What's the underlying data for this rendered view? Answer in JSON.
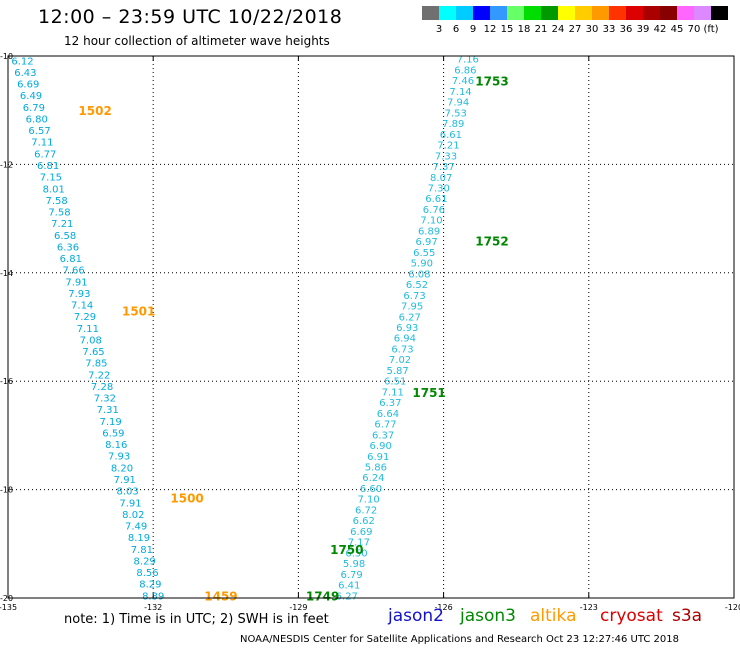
{
  "title": "12:00 – 23:59 UTC 10/22/2018",
  "subtitle": "12 hour collection of altimeter wave heights",
  "note": "note:  1) Time is in UTC;  2) SWH is in feet",
  "credit": "NOAA/NESDIS Center for Satellite Applications and Research     Oct 23 12:27:46 UTC 2018",
  "satellites": [
    {
      "name": "jason2",
      "color": "#1212cc"
    },
    {
      "name": "jason3",
      "color": "#008800"
    },
    {
      "name": "altika",
      "color": "#ff9900"
    },
    {
      "name": "cryosat",
      "color": "#dd0000"
    },
    {
      "name": "s3a",
      "color": "#aa0000"
    }
  ],
  "legend": {
    "colors": [
      "#707070",
      "#00ffff",
      "#00ccff",
      "#0000ff",
      "#3399ff",
      "#66ff66",
      "#00dd00",
      "#009900",
      "#ffff00",
      "#ffcc00",
      "#ff9900",
      "#ff3300",
      "#dd0000",
      "#aa0000",
      "#880000",
      "#ff66ff",
      "#dd88ff",
      "#000000"
    ],
    "labels": [
      "3",
      "6",
      "9",
      "12",
      "15",
      "18",
      "21",
      "24",
      "27",
      "30",
      "33",
      "36",
      "39",
      "42",
      "45",
      "70",
      "(ft)"
    ]
  },
  "chart_data": {
    "type": "scatter",
    "x_ticks": [
      -135,
      -132,
      -129,
      -126,
      -123,
      -120
    ],
    "x_tick_labels": [
      "-135",
      "-132",
      "-129",
      "-126",
      "-123",
      "-120"
    ],
    "y_ticks": [
      -10,
      -12,
      -14,
      -16,
      -18,
      -20
    ],
    "y_tick_labels": [
      "-10",
      "-12",
      "-14",
      "-16",
      "-18",
      "-20"
    ],
    "xlim": [
      -135,
      -120
    ],
    "ylim": [
      -20,
      -10
    ],
    "grid": true,
    "tracks": [
      {
        "satellite": "altika",
        "color": "#00aadd",
        "time_color": "#ff9900",
        "start": [
          -134.7,
          -10.08
        ],
        "end": [
          -132.0,
          -19.95
        ],
        "values": [
          "6.12",
          "6.43",
          "6.69",
          "6.49",
          "6.79",
          "6.80",
          "6.57",
          "7.11",
          "6.77",
          "6.81",
          "7.15",
          "8.01",
          "7.58",
          "7.58",
          "7.21",
          "6.58",
          "6.36",
          "6.81",
          "7.66",
          "7.91",
          "7.93",
          "7.14",
          "7.29",
          "7.11",
          "7.08",
          "7.65",
          "7.85",
          "7.22",
          "7.28",
          "7.32",
          "7.31",
          "7.19",
          "6.59",
          "8.16",
          "7.93",
          "8.20",
          "7.91",
          "8.03",
          "7.91",
          "8.02",
          "7.49",
          "8.19",
          "7.81",
          "8.29",
          "8.56",
          "8.29",
          "8.39"
        ],
        "time_labels": [
          {
            "text": "1502",
            "lon": -133.2,
            "lat": -11.0
          },
          {
            "text": "1501",
            "lon": -132.3,
            "lat": -14.7
          },
          {
            "text": "1500",
            "lon": -131.3,
            "lat": -18.15
          },
          {
            "text": "1459",
            "lon": -130.6,
            "lat": -19.95
          }
        ]
      },
      {
        "satellite": "jason3",
        "color": "#22bbdd",
        "time_color": "#008800",
        "start": [
          -128.0,
          -19.95
        ],
        "end": [
          -125.5,
          -10.05
        ],
        "values": [
          "6.27",
          "6.41",
          "6.79",
          "5.98",
          "6.50",
          "7.17",
          "6.69",
          "6.62",
          "6.72",
          "7.10",
          "6.60",
          "6.24",
          "5.86",
          "6.91",
          "6.90",
          "6.37",
          "6.77",
          "6.64",
          "6.37",
          "7.11",
          "6.51",
          "5.87",
          "7.02",
          "6.73",
          "6.94",
          "6.93",
          "6.27",
          "7.95",
          "6.73",
          "6.52",
          "6.08",
          "5.90",
          "6.55",
          "6.97",
          "6.89",
          "7.10",
          "6.76",
          "6.61",
          "7.30",
          "8.07",
          "7.37",
          "7.33",
          "7.21",
          "6.61",
          "7.89",
          "7.53",
          "7.94",
          "7.14",
          "7.46",
          "6.86",
          "7.16"
        ],
        "time_labels": [
          {
            "text": "1753",
            "lon": -125.0,
            "lat": -10.45
          },
          {
            "text": "1752",
            "lon": -125.0,
            "lat": -13.4
          },
          {
            "text": "1751",
            "lon": -126.3,
            "lat": -16.2
          },
          {
            "text": "1750",
            "lon": -128.0,
            "lat": -19.1
          },
          {
            "text": "1749",
            "lon": -128.5,
            "lat": -19.95
          }
        ]
      }
    ]
  }
}
